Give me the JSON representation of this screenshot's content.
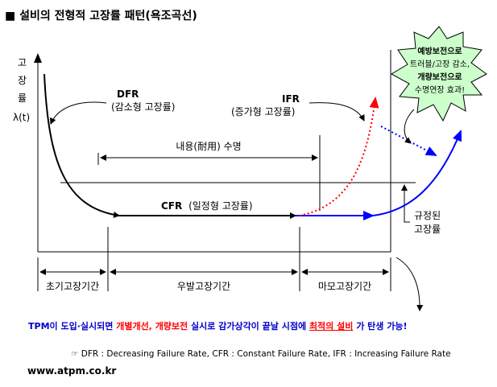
{
  "title": "■ 설비의 전형적 고장률 패턴(욕조곡선)",
  "axis": {
    "y_label_chars": [
      "고",
      "장",
      "률"
    ],
    "y_symbol": "λ(t)"
  },
  "labels": {
    "dfr_code": "DFR",
    "dfr_desc": "(감소형 고장률)",
    "ifr_code": "IFR",
    "ifr_desc": "(증가형 고장률)",
    "cfr_code": "CFR",
    "cfr_desc": "(일정형 고장률)",
    "life": "내용(耐用) 수명",
    "rated_line1": "규정된",
    "rated_line2": "고장률"
  },
  "periods": {
    "early": "초기고장기간",
    "random": "우발고장기간",
    "wearout": "마모고장기간"
  },
  "burst": {
    "line1": "예방보전으로",
    "line2": "트러블/고장 감소,",
    "line3": "개량보전으로",
    "line4": "수명연장 효과!"
  },
  "bottom": {
    "p1": "TPM이 도입·실시되면 ",
    "p2": "개별개선, 개량보전",
    "p3": " 실시로 감가상각이 끝날 시점에 ",
    "p4": "최적의 설비",
    "p5": "가 탄생 가능!"
  },
  "legend": "☞ DFR : Decreasing Failure Rate, CFR : Constant Failure Rate, IFR : Increasing Failure Rate",
  "url": "www.atpm.co.kr",
  "colors": {
    "blue": "#0000ff",
    "red": "#ff0000",
    "burst_fill": "#ccffcc",
    "bottom_blue": "#0000cc"
  }
}
